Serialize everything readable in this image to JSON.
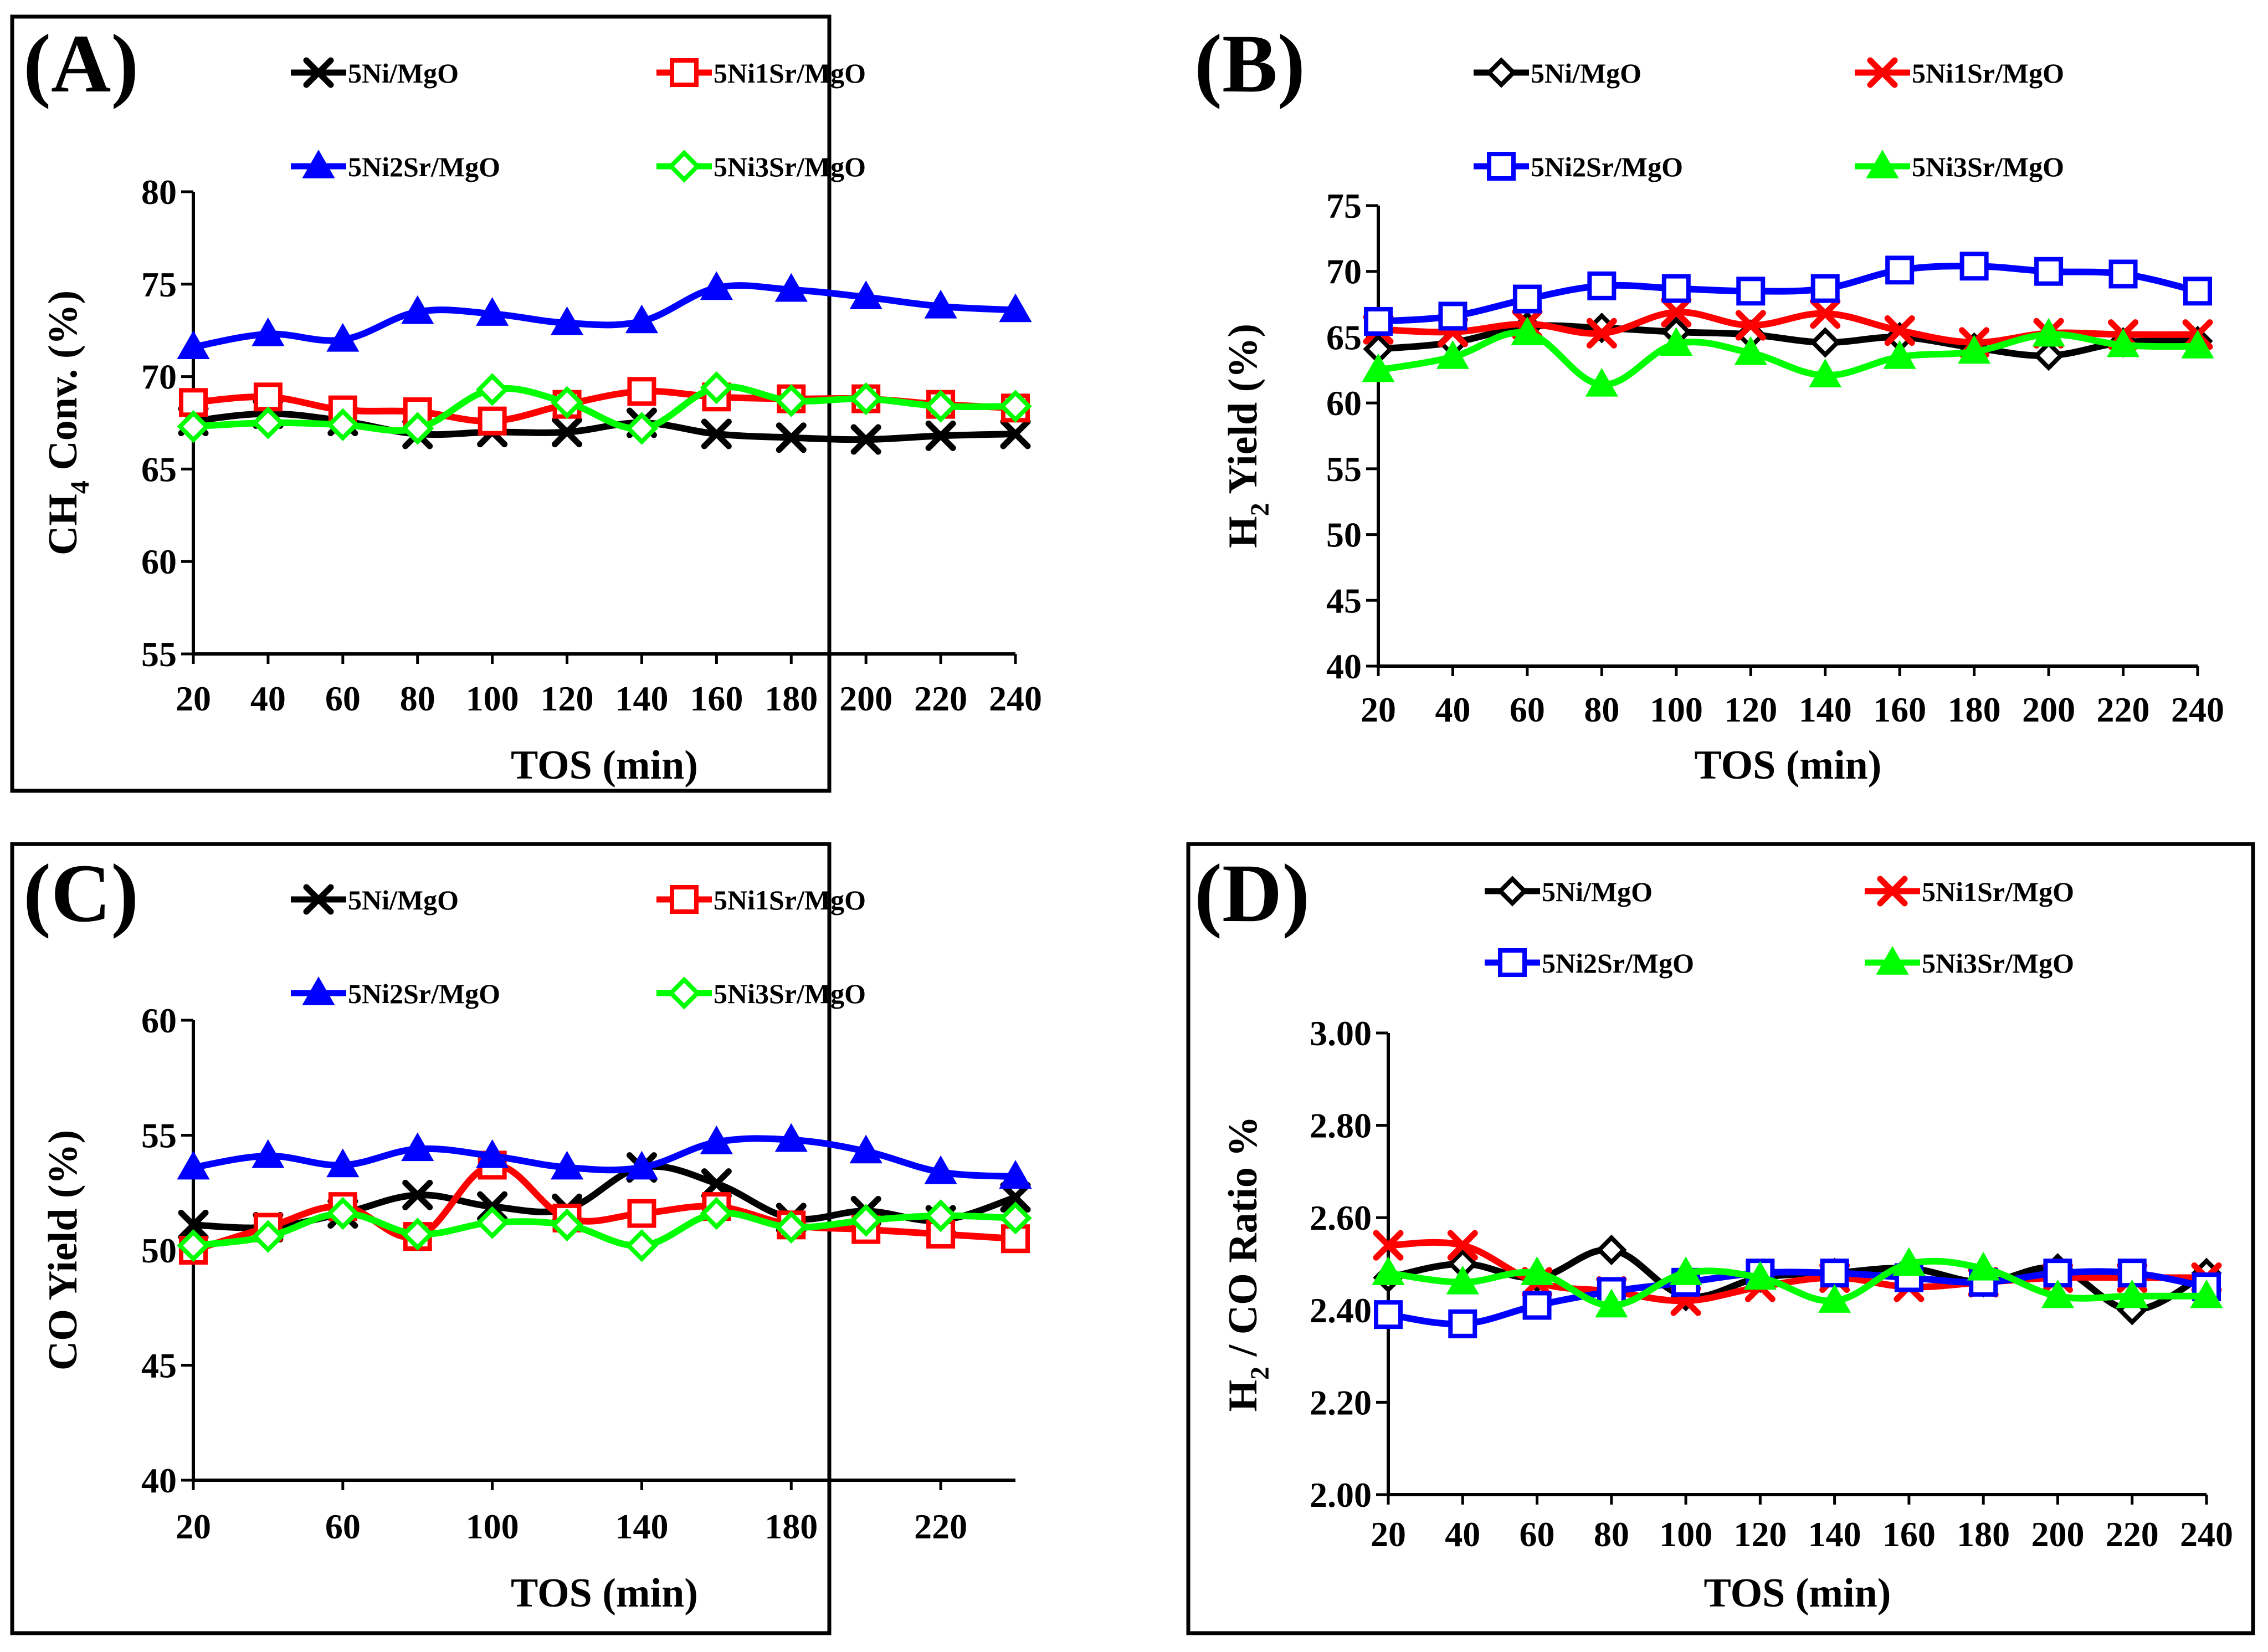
{
  "figure": {
    "layout": "2x2 grid of line charts",
    "xlabel": "TOS (min)"
  },
  "chart_data": [
    {
      "panel": "(A)",
      "type": "line",
      "ylabel": "CH4 Conv. (%)",
      "ylabel_main": "CH",
      "ylabel_sub": "4",
      "ylabel_rest": " Conv. (%)",
      "xlabel": "TOS (min)",
      "x": [
        20,
        40,
        60,
        80,
        100,
        120,
        140,
        160,
        180,
        200,
        220,
        240
      ],
      "xticks": [
        20,
        40,
        60,
        80,
        100,
        120,
        140,
        160,
        180,
        200,
        220,
        240
      ],
      "xlim": [
        20,
        240
      ],
      "ylim": [
        55,
        80
      ],
      "yticks": [
        55,
        60,
        65,
        70,
        75,
        80
      ],
      "ytick_labels": [
        "55",
        "60",
        "65",
        "70",
        "75",
        "80"
      ],
      "series": [
        {
          "name": "5Ni/MgO",
          "color": "#000000",
          "marker": "x",
          "values": [
            67.6,
            68.0,
            67.6,
            66.9,
            67.0,
            67.0,
            67.5,
            66.9,
            66.7,
            66.6,
            66.8,
            66.9
          ]
        },
        {
          "name": "5Ni1Sr/MgO",
          "color": "#ff0000",
          "marker": "square",
          "values": [
            68.6,
            68.9,
            68.2,
            68.1,
            67.6,
            68.5,
            69.2,
            68.9,
            68.8,
            68.8,
            68.5,
            68.3
          ]
        },
        {
          "name": "5Ni2Sr/MgO",
          "color": "#0000ff",
          "marker": "triangle",
          "values": [
            71.6,
            72.3,
            72.0,
            73.5,
            73.4,
            72.9,
            73.0,
            74.8,
            74.7,
            74.3,
            73.8,
            73.6
          ]
        },
        {
          "name": "5Ni3Sr/MgO",
          "color": "#00ff00",
          "marker": "diamond",
          "values": [
            67.3,
            67.5,
            67.4,
            67.2,
            69.3,
            68.6,
            67.2,
            69.4,
            68.7,
            68.8,
            68.4,
            68.4
          ]
        }
      ]
    },
    {
      "panel": "(B)",
      "type": "line",
      "ylabel": "H2 Yield (%)",
      "ylabel_main": "H",
      "ylabel_sub": "2",
      "ylabel_rest": " Yield (%)",
      "xlabel": "TOS (min)",
      "x": [
        20,
        40,
        60,
        80,
        100,
        120,
        140,
        160,
        180,
        200,
        220,
        240
      ],
      "xticks": [
        20,
        40,
        60,
        80,
        100,
        120,
        140,
        160,
        180,
        200,
        220,
        240
      ],
      "xlim": [
        20,
        240
      ],
      "ylim": [
        40,
        75
      ],
      "yticks": [
        40,
        45,
        50,
        55,
        60,
        65,
        70,
        75
      ],
      "ytick_labels": [
        "40",
        "45",
        "50",
        "55",
        "60",
        "65",
        "70",
        "75"
      ],
      "series": [
        {
          "name": "5Ni/MgO",
          "color": "#000000",
          "marker": "diamond-open",
          "values": [
            64.1,
            64.6,
            65.8,
            65.7,
            65.4,
            65.2,
            64.6,
            65.0,
            64.2,
            63.6,
            64.6,
            64.7
          ]
        },
        {
          "name": "5Ni1Sr/MgO",
          "color": "#ff0000",
          "marker": "x",
          "values": [
            65.6,
            65.4,
            66.0,
            65.3,
            66.9,
            65.9,
            66.8,
            65.5,
            64.6,
            65.3,
            65.2,
            65.2
          ]
        },
        {
          "name": "5Ni2Sr/MgO",
          "color": "#0000ff",
          "marker": "square",
          "values": [
            66.2,
            66.6,
            67.9,
            68.9,
            68.7,
            68.5,
            68.7,
            70.1,
            70.4,
            70.0,
            69.8,
            68.5
          ]
        },
        {
          "name": "5Ni3Sr/MgO",
          "color": "#00ff00",
          "marker": "triangle",
          "values": [
            62.5,
            63.5,
            65.3,
            61.4,
            64.5,
            63.8,
            62.1,
            63.5,
            63.9,
            65.2,
            64.4,
            64.3
          ]
        }
      ]
    },
    {
      "panel": "(C)",
      "type": "line",
      "ylabel": "CO Yield (%)",
      "ylabel_main": "CO Yield (%)",
      "ylabel_sub": "",
      "ylabel_rest": "",
      "xlabel": "TOS (min)",
      "x": [
        20,
        40,
        60,
        80,
        100,
        120,
        140,
        160,
        180,
        200,
        220,
        240
      ],
      "xticks": [
        20,
        60,
        100,
        140,
        180,
        220
      ],
      "xlim": [
        20,
        240
      ],
      "ylim": [
        40,
        60
      ],
      "yticks": [
        40,
        45,
        50,
        55,
        60
      ],
      "ytick_labels": [
        "40",
        "45",
        "50",
        "55",
        "60"
      ],
      "series": [
        {
          "name": "5Ni/MgO",
          "color": "#000000",
          "marker": "x",
          "values": [
            51.1,
            51.0,
            51.6,
            52.4,
            51.9,
            51.8,
            53.6,
            52.9,
            51.4,
            51.7,
            51.3,
            52.3
          ]
        },
        {
          "name": "5Ni1Sr/MgO",
          "color": "#ff0000",
          "marker": "square",
          "values": [
            50.0,
            51.0,
            51.9,
            50.6,
            53.7,
            51.4,
            51.6,
            51.9,
            51.1,
            50.9,
            50.7,
            50.5
          ]
        },
        {
          "name": "5Ni2Sr/MgO",
          "color": "#0000ff",
          "marker": "triangle",
          "values": [
            53.6,
            54.1,
            53.7,
            54.4,
            54.1,
            53.6,
            53.6,
            54.7,
            54.8,
            54.3,
            53.4,
            53.2
          ]
        },
        {
          "name": "5Ni3Sr/MgO",
          "color": "#00ff00",
          "marker": "diamond",
          "values": [
            50.2,
            50.6,
            51.6,
            50.7,
            51.2,
            51.1,
            50.2,
            51.6,
            51.0,
            51.3,
            51.5,
            51.4
          ]
        }
      ]
    },
    {
      "panel": "(D)",
      "type": "line",
      "ylabel": "H2 / CO Ratio %",
      "ylabel_main": "H",
      "ylabel_sub": "2",
      "ylabel_rest": " / CO Ratio %",
      "xlabel": "TOS (min)",
      "x": [
        20,
        40,
        60,
        80,
        100,
        120,
        140,
        160,
        180,
        200,
        220,
        240
      ],
      "xticks": [
        20,
        40,
        60,
        80,
        100,
        120,
        140,
        160,
        180,
        200,
        220,
        240
      ],
      "xlim": [
        20,
        240
      ],
      "ylim": [
        2.0,
        3.0
      ],
      "yticks": [
        2.0,
        2.2,
        2.4,
        2.6,
        2.8,
        3.0
      ],
      "ytick_labels": [
        "2.00",
        "2.20",
        "2.40",
        "2.60",
        "2.80",
        "3.00"
      ],
      "series": [
        {
          "name": "5Ni/MgO",
          "color": "#000000",
          "marker": "diamond-open",
          "values": [
            2.47,
            2.5,
            2.47,
            2.53,
            2.43,
            2.47,
            2.48,
            2.49,
            2.46,
            2.49,
            2.4,
            2.48
          ]
        },
        {
          "name": "5Ni1Sr/MgO",
          "color": "#ff0000",
          "marker": "x",
          "values": [
            2.54,
            2.54,
            2.46,
            2.44,
            2.42,
            2.45,
            2.47,
            2.45,
            2.46,
            2.47,
            2.47,
            2.47
          ]
        },
        {
          "name": "5Ni2Sr/MgO",
          "color": "#0000ff",
          "marker": "square",
          "values": [
            2.39,
            2.37,
            2.41,
            2.44,
            2.46,
            2.48,
            2.48,
            2.47,
            2.46,
            2.48,
            2.48,
            2.45
          ]
        },
        {
          "name": "5Ni3Sr/MgO",
          "color": "#00ff00",
          "marker": "triangle",
          "values": [
            2.48,
            2.46,
            2.48,
            2.41,
            2.48,
            2.47,
            2.42,
            2.5,
            2.49,
            2.43,
            2.43,
            2.43
          ]
        }
      ]
    }
  ]
}
